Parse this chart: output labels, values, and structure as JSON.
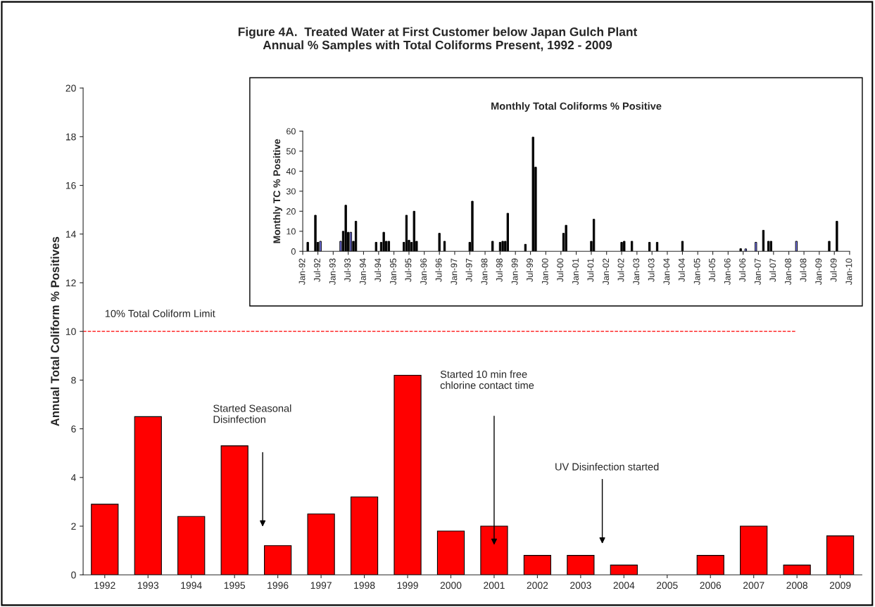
{
  "chart_data": [
    {
      "type": "bar",
      "title": "Figure 4A.  Treated Water at First Customer below Japan Gulch Plant\nAnnual % Samples with Total Coliforms Present, 1992 - 2009",
      "ylabel": "Annual Total Coliform % Positives",
      "categories": [
        "1992",
        "1993",
        "1994",
        "1995",
        "1996",
        "1997",
        "1998",
        "1999",
        "2000",
        "2001",
        "2002",
        "2003",
        "2004",
        "2005",
        "2006",
        "2007",
        "2008",
        "2009"
      ],
      "values": [
        2.9,
        6.5,
        2.4,
        5.3,
        1.2,
        2.5,
        3.2,
        8.2,
        1.8,
        2.0,
        0.8,
        0.8,
        0.4,
        0,
        0.8,
        2.0,
        0.4,
        1.6
      ],
      "color": "#ff0000",
      "ylim": [
        0,
        20
      ],
      "yticks": [
        0,
        2,
        4,
        6,
        8,
        10,
        12,
        14,
        16,
        18,
        20
      ],
      "ref_lines": [
        {
          "axis": "y",
          "value": 10,
          "label": "10% Total Coliform Limit",
          "color": "#ff0000",
          "line_style": "dashed"
        }
      ],
      "annotations": [
        "Started Seasonal\nDisinfection",
        "Started 10 min free\nchlorine contact time",
        "UV Disinfection started"
      ]
    },
    {
      "type": "bar",
      "title": "Monthly Total Coliforms % Positive",
      "ylabel": "Monthly TC % Positive",
      "x": [
        "1992-03",
        "1992-06",
        "1992-07",
        "1992-08",
        "1993-04",
        "1993-05",
        "1993-06",
        "1993-07",
        "1993-08",
        "1993-09",
        "1993-10",
        "1994-06",
        "1994-08",
        "1994-09",
        "1994-10",
        "1994-11",
        "1995-05",
        "1995-06",
        "1995-07",
        "1995-08",
        "1995-09",
        "1995-10",
        "1996-07",
        "1996-09",
        "1997-07",
        "1997-08",
        "1998-04",
        "1998-07",
        "1998-08",
        "1998-09",
        "1998-10",
        "1999-05",
        "1999-08",
        "1999-09",
        "2000-08",
        "2000-09",
        "2001-07",
        "2001-08",
        "2002-07",
        "2002-08",
        "2002-11",
        "2003-06",
        "2003-09",
        "2004-07",
        "2006-06",
        "2006-08",
        "2006-12",
        "2007-03",
        "2007-05",
        "2007-06",
        "2008-04",
        "2009-05",
        "2009-08"
      ],
      "values": [
        4.5,
        18,
        4.5,
        5,
        5,
        10,
        23,
        9.5,
        9.5,
        5,
        15,
        4.5,
        4.5,
        9.5,
        5,
        5,
        4.5,
        18,
        5.5,
        4.5,
        20,
        5,
        9,
        5,
        4.5,
        25,
        5,
        4.5,
        5,
        5,
        19,
        3.5,
        57,
        42,
        9,
        13,
        5,
        16,
        4.5,
        5,
        5,
        4.5,
        4.5,
        5,
        1.3,
        1.2,
        4.5,
        10.5,
        5,
        5,
        5,
        5,
        15
      ],
      "colors": [
        "#000000",
        "#000000",
        "#000000",
        "#7f7fff",
        "#7f7fff",
        "#000000",
        "#000000",
        "#000000",
        "#7f7fff",
        "#000000",
        "#000000",
        "#000000",
        "#000000",
        "#000000",
        "#000000",
        "#000000",
        "#000000",
        "#000000",
        "#000000",
        "#000000",
        "#000000",
        "#000000",
        "#000000",
        "#000000",
        "#000000",
        "#000000",
        "#000000",
        "#000000",
        "#000000",
        "#000000",
        "#000000",
        "#000000",
        "#000000",
        "#000000",
        "#000000",
        "#000000",
        "#000000",
        "#000000",
        "#000000",
        "#000000",
        "#000000",
        "#000000",
        "#000000",
        "#000000",
        "#000000",
        "#7f7fff",
        "#7f7fff",
        "#000000",
        "#000000",
        "#000000",
        "#7f7fff",
        "#000000",
        "#000000"
      ],
      "xlim": [
        "1992-01",
        "2010-01"
      ],
      "ylim": [
        0,
        60
      ],
      "yticks": [
        0,
        10,
        20,
        30,
        40,
        50,
        60
      ],
      "xticks": [
        {
          "value": "1992-01",
          "label": "Jan-92"
        },
        {
          "value": "1992-07",
          "label": "Jul-92"
        },
        {
          "value": "1993-01",
          "label": "Jan-93"
        },
        {
          "value": "1993-07",
          "label": "Jul-93"
        },
        {
          "value": "1994-01",
          "label": "Jan-94"
        },
        {
          "value": "1994-07",
          "label": "Jul-94"
        },
        {
          "value": "1995-01",
          "label": "Jan-95"
        },
        {
          "value": "1995-07",
          "label": "Jul-95"
        },
        {
          "value": "1996-01",
          "label": "Jan-96"
        },
        {
          "value": "1996-07",
          "label": "Jul-96"
        },
        {
          "value": "1997-01",
          "label": "Jan-97"
        },
        {
          "value": "1997-07",
          "label": "Jul-97"
        },
        {
          "value": "1998-01",
          "label": "Jan-98"
        },
        {
          "value": "1998-07",
          "label": "Jul-98"
        },
        {
          "value": "1999-01",
          "label": "Jan-99"
        },
        {
          "value": "1999-07",
          "label": "Jul-99"
        },
        {
          "value": "2000-01",
          "label": "Jan-00"
        },
        {
          "value": "2000-07",
          "label": "Jul-00"
        },
        {
          "value": "2001-01",
          "label": "Jan-01"
        },
        {
          "value": "2001-07",
          "label": "Jul-01"
        },
        {
          "value": "2002-01",
          "label": "Jan-02"
        },
        {
          "value": "2002-07",
          "label": "Jul-02"
        },
        {
          "value": "2003-01",
          "label": "Jan-03"
        },
        {
          "value": "2003-07",
          "label": "Jul-03"
        },
        {
          "value": "2004-01",
          "label": "Jan-04"
        },
        {
          "value": "2004-07",
          "label": "Jul-04"
        },
        {
          "value": "2005-01",
          "label": "Jan-05"
        },
        {
          "value": "2005-07",
          "label": "Jul-05"
        },
        {
          "value": "2006-01",
          "label": "Jan-06"
        },
        {
          "value": "2006-07",
          "label": "Jul-06"
        },
        {
          "value": "2007-01",
          "label": "Jan-07"
        },
        {
          "value": "2007-07",
          "label": "Jul-07"
        },
        {
          "value": "2008-01",
          "label": "Jan-08"
        },
        {
          "value": "2008-07",
          "label": "Jul-08"
        },
        {
          "value": "2009-01",
          "label": "Jan-09"
        },
        {
          "value": "2009-07",
          "label": "Jul-09"
        },
        {
          "value": "2010-01",
          "label": "Jan-10"
        }
      ]
    }
  ]
}
